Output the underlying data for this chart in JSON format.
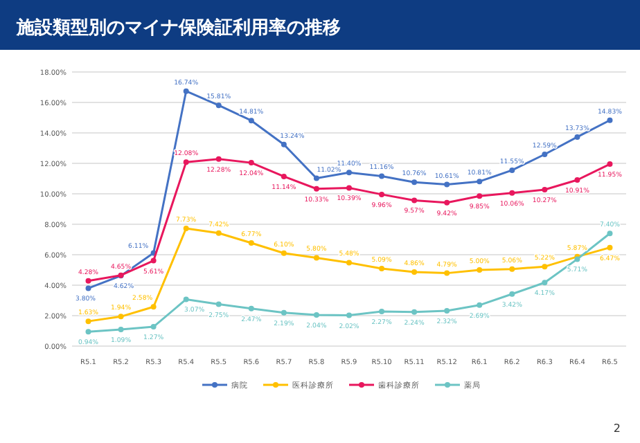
{
  "chart_data": {
    "type": "line",
    "title": "施設類型別のマイナ保険証利用率の推移",
    "categories": [
      "R5.1",
      "R5.2",
      "R5.3",
      "R5.4",
      "R5.5",
      "R5.6",
      "R5.7",
      "R5.8",
      "R5.9",
      "R5.10",
      "R5.11",
      "R5.12",
      "R6.1",
      "R6.2",
      "R6.3",
      "R6.4",
      "R6.5"
    ],
    "series": [
      {
        "name": "病院",
        "color": "#4472c4",
        "values": [
          3.8,
          4.62,
          6.11,
          16.74,
          15.81,
          14.81,
          13.24,
          11.02,
          11.4,
          11.16,
          10.76,
          10.61,
          10.81,
          11.55,
          12.59,
          13.73,
          14.83
        ],
        "value_labels": [
          "3.80%",
          "4.62%",
          "6.11%",
          "16.74%",
          "15.81%",
          "14.81%",
          "13.24%",
          "11.02%",
          "11.40%",
          "11.16%",
          "10.76%",
          "10.61%",
          "10.81%",
          "11.55%",
          "12.59%",
          "13.73%",
          "14.83%"
        ]
      },
      {
        "name": "医科診療所",
        "color": "#ffc000",
        "values": [
          1.63,
          1.94,
          2.58,
          7.73,
          7.42,
          6.77,
          6.1,
          5.8,
          5.48,
          5.09,
          4.86,
          4.79,
          5.0,
          5.06,
          5.22,
          5.87,
          6.47
        ],
        "value_labels": [
          "1.63%",
          "1.94%",
          "2.58%",
          "7.73%",
          "7.42%",
          "6.77%",
          "6.10%",
          "5.80%",
          "5.48%",
          "5.09%",
          "4.86%",
          "4.79%",
          "5.00%",
          "5.06%",
          "5.22%",
          "5.87%",
          "6.47%"
        ]
      },
      {
        "name": "歯科診療所",
        "color": "#e8175d",
        "values": [
          4.28,
          4.65,
          5.61,
          12.08,
          12.28,
          12.04,
          11.14,
          10.33,
          10.39,
          9.96,
          9.57,
          9.42,
          9.85,
          10.06,
          10.27,
          10.91,
          11.95
        ],
        "value_labels": [
          "4.28%",
          "4.65%",
          "5.61%",
          "12.08%",
          "12.28%",
          "12.04%",
          "11.14%",
          "10.33%",
          "10.39%",
          "9.96%",
          "9.57%",
          "9.42%",
          "9.85%",
          "10.06%",
          "10.27%",
          "10.91%",
          "11.95%"
        ]
      },
      {
        "name": "薬局",
        "color": "#6cc4c4",
        "values": [
          0.94,
          1.09,
          1.27,
          3.07,
          2.75,
          2.47,
          2.19,
          2.04,
          2.02,
          2.27,
          2.24,
          2.32,
          2.69,
          3.42,
          4.17,
          5.71,
          7.4
        ],
        "value_labels": [
          "0.94%",
          "1.09%",
          "1.27%",
          "3.07%",
          "2.75%",
          "2.47%",
          "2.19%",
          "2.04%",
          "2.02%",
          "2.27%",
          "2.24%",
          "2.32%",
          "2.69%",
          "3.42%",
          "4.17%",
          "5.71%",
          "7.40%"
        ]
      }
    ],
    "ylim": [
      0,
      18
    ],
    "yticks": [
      {
        "value": 0,
        "label": "0.00%"
      },
      {
        "value": 2,
        "label": "2.00%"
      },
      {
        "value": 4,
        "label": "4.00%"
      },
      {
        "value": 6,
        "label": "6.00%"
      },
      {
        "value": 8,
        "label": "8.00%"
      },
      {
        "value": 10,
        "label": "10.00%"
      },
      {
        "value": 12,
        "label": "12.00%"
      },
      {
        "value": 14,
        "label": "14.00%"
      },
      {
        "value": 16,
        "label": "16.00%"
      },
      {
        "value": 18,
        "label": "18.00%"
      }
    ],
    "grid": "y",
    "legend": "bottom",
    "marker": "circle",
    "line_style": "solid",
    "annotations": [
      "2"
    ]
  }
}
